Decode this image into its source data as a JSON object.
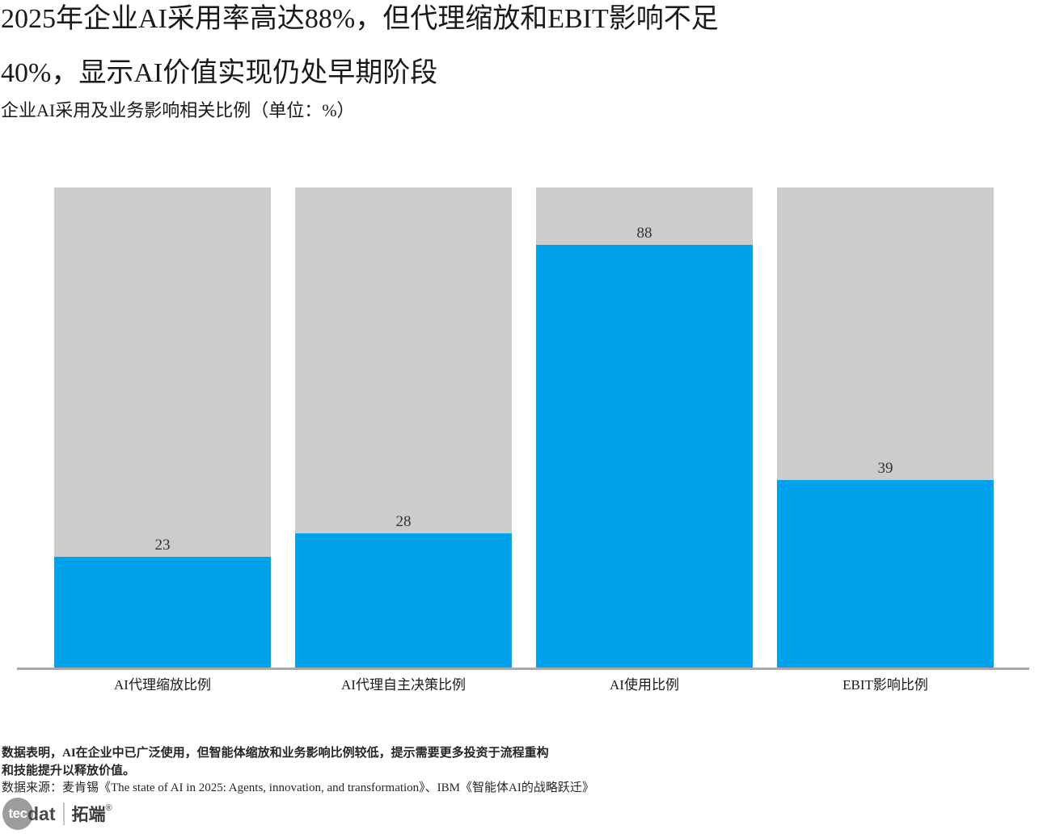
{
  "title": {
    "line1": "2025年企业AI采用率高达88%，但代理缩放和EBIT影响不足",
    "line2": "40%，显示AI价值实现仍处早期阶段"
  },
  "subtitle": "企业AI采用及业务影响相关比例（单位：%）",
  "chart_data": {
    "type": "bar",
    "title": "企业AI采用及业务影响相关比例",
    "unit": "%",
    "categories": [
      "AI代理缩放比例",
      "AI代理自主决策比例",
      "AI使用比例",
      "EBIT影响比例"
    ],
    "values": [
      23,
      28,
      88,
      39
    ],
    "ylim": [
      0,
      100
    ],
    "grid": false,
    "legend": "none",
    "value_labels_shown": true,
    "bar_color": "#00A2EC",
    "track_color": "#CCCCCC",
    "axis_line_color": "#A8A8A8",
    "value_label_color": "#333333"
  },
  "footer": {
    "note_line1": "数据表明，AI在企业中已广泛使用，但智能体缩放和业务影响比例较低，提示需要更多投资于流程重构",
    "note_line2": "和技能提升以释放价值。",
    "source": "数据来源：麦肯锡《The state of AI in 2025: Agents, innovation, and transformation》、IBM《智能体AI的战略跃迁》"
  },
  "logo": {
    "circle_text": "tec",
    "suffix_text": "dat",
    "brand": "拓端",
    "reg_mark": "®"
  }
}
